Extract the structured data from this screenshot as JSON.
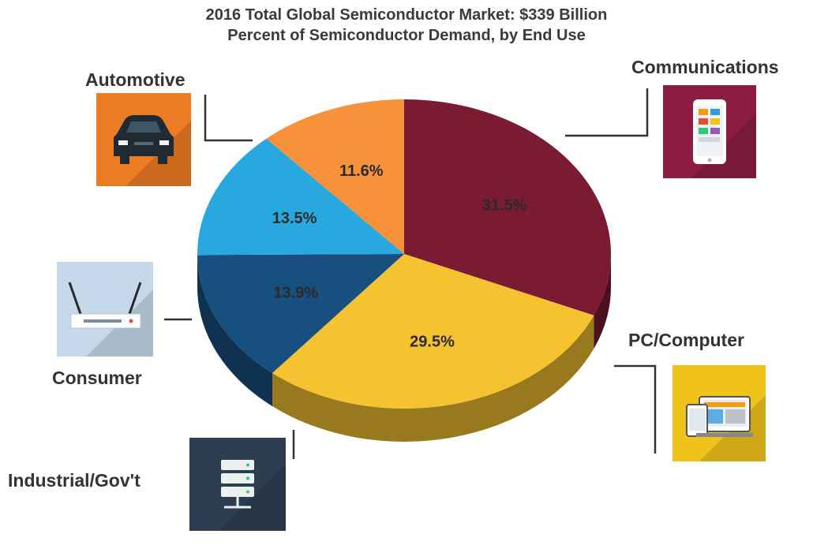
{
  "chart_data": {
    "type": "pie",
    "title": "2016 Total Global Semiconductor Market: $339 Billion",
    "subtitle": "Percent of Semiconductor Demand, by End Use",
    "slices": [
      {
        "label": "Communications",
        "value": 31.5,
        "display": "31.5%",
        "color": "#7a1a33"
      },
      {
        "label": "PC/Computer",
        "value": 29.5,
        "display": "29.5%",
        "color": "#f5c330"
      },
      {
        "label": "Industrial/Gov't",
        "value": 13.9,
        "display": "13.9%",
        "color": "#17507f"
      },
      {
        "label": "Consumer",
        "value": 13.5,
        "display": "13.5%",
        "color": "#29a8e0"
      },
      {
        "label": "Automotive",
        "value": 11.6,
        "display": "11.6%",
        "color": "#f7923a"
      }
    ],
    "legend": "none"
  },
  "icons": {
    "automotive": {
      "name": "car-icon",
      "bg": "#ec7c24"
    },
    "communications": {
      "name": "smartphone-icon",
      "bg": "#8c1d40"
    },
    "consumer": {
      "name": "router-icon",
      "bg": "#c5d9ea"
    },
    "pc": {
      "name": "devices-icon",
      "bg": "#f0c31c"
    },
    "industrial": {
      "name": "server-icon",
      "bg": "#2c3e50"
    }
  }
}
